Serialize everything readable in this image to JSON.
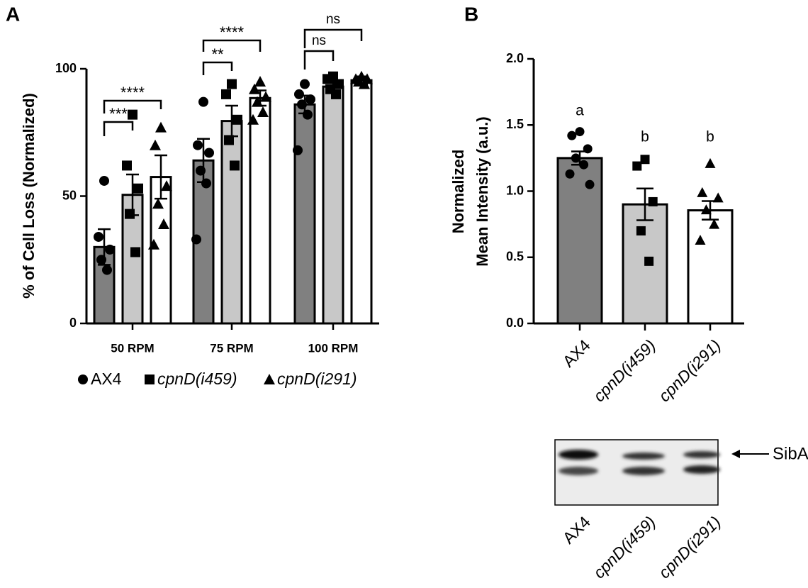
{
  "chart_data": [
    {
      "type": "bar",
      "panel": "A",
      "y_label": "% of Cell Loss (Normalized)",
      "categories": [
        "50 RPM",
        "75 RPM",
        "100 RPM"
      ],
      "ylim": [
        0,
        100
      ],
      "yticks": [
        0,
        50,
        100
      ],
      "series": [
        {
          "name": "AX4",
          "color": "#808080",
          "marker": "circle",
          "italic": false,
          "values": [
            30,
            64,
            86
          ],
          "errors": [
            7,
            8.5,
            3.5
          ],
          "points": [
            [
              56,
              34,
              29,
              25,
              21
            ],
            [
              87,
              70,
              67,
              60,
              55,
              33
            ],
            [
              94,
              90,
              88,
              86,
              82,
              68
            ]
          ]
        },
        {
          "name": "cpnD(i459)",
          "color": "#c8c8c8",
          "marker": "square",
          "italic": true,
          "values": [
            50.5,
            79.5,
            93
          ],
          "errors": [
            8,
            6,
            2.5
          ],
          "points": [
            [
              82,
              62,
              53,
              43,
              28
            ],
            [
              94,
              90,
              80,
              72,
              62
            ],
            [
              97,
              96,
              94,
              92,
              90
            ]
          ]
        },
        {
          "name": "cpnD(i291)",
          "color": "#ffffff",
          "marker": "triangle",
          "italic": true,
          "values": [
            57.5,
            88.5,
            95.5
          ],
          "errors": [
            8.5,
            3,
            1.5
          ],
          "points": [
            [
              77,
              70,
              54,
              47,
              39,
              31
            ],
            [
              95,
              92,
              89,
              87,
              83,
              80
            ],
            [
              97,
              96,
              96,
              95,
              94
            ]
          ]
        }
      ],
      "annotations": [
        "***",
        "****",
        "**",
        "****",
        "ns",
        "ns"
      ]
    },
    {
      "type": "bar",
      "panel": "B",
      "y_label": [
        "Normalized",
        "Mean Intensity (a.u.)"
      ],
      "categories": [
        "AX4",
        "cpnD(i459)",
        "cpnD(i291)"
      ],
      "italic": [
        false,
        true,
        true
      ],
      "colors": [
        "#808080",
        "#c8c8c8",
        "#ffffff"
      ],
      "markers": [
        "circle",
        "square",
        "triangle"
      ],
      "values": [
        1.25,
        0.9,
        0.855
      ],
      "errors": [
        0.05,
        0.12,
        0.07
      ],
      "points": [
        [
          1.45,
          1.42,
          1.32,
          1.25,
          1.2,
          1.13,
          1.05
        ],
        [
          1.24,
          1.19,
          0.92,
          0.7,
          0.47
        ],
        [
          1.21,
          0.99,
          0.95,
          0.86,
          0.75,
          0.63
        ]
      ],
      "letters": [
        "a",
        "b",
        "b"
      ],
      "ylim": [
        0,
        2
      ],
      "yticks": [
        {
          "value": 0,
          "label": "0.0"
        },
        0.5,
        {
          "value": 1,
          "label": "1.0"
        },
        1.5,
        {
          "value": 2,
          "label": "2.0"
        }
      ]
    }
  ],
  "blot": {
    "label": "SibA",
    "lanes": [
      "AX4",
      "cpnD(i459)",
      "cpnD(i291)"
    ]
  }
}
